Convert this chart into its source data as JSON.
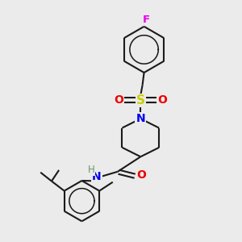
{
  "background_color": "#ebebeb",
  "bond_color": "#1a1a1a",
  "N_color": "#0000ee",
  "O_color": "#ee0000",
  "S_color": "#cccc00",
  "F_color": "#ee00ee",
  "H_color": "#669966",
  "line_width": 1.5,
  "dpi": 100,
  "figsize": [
    3.0,
    3.0
  ],
  "xlim": [
    0,
    10
  ],
  "ylim": [
    0,
    10.5
  ]
}
